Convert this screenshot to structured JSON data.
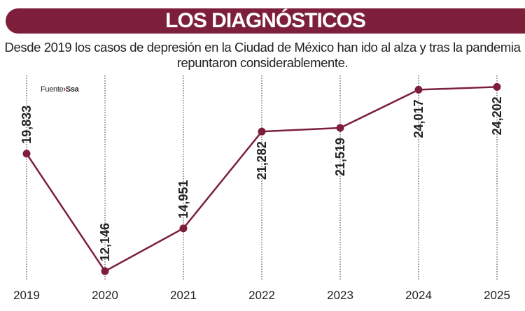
{
  "header": {
    "title": "LOS DIAGNÓSTICOS"
  },
  "subtitle": "Desde 2019 los casos de depresión en la Ciudad de México han ido al alza y tras la pandemia repuntaron considerablemente.",
  "source": {
    "label": "Fuente",
    "arrow": "›",
    "name": "Ssa"
  },
  "colors": {
    "accent": "#7d1f3b",
    "text": "#222222"
  },
  "chart_data": {
    "type": "line",
    "categories": [
      "2019",
      "2020",
      "2021",
      "2022",
      "2023",
      "2024",
      "2025"
    ],
    "values": [
      19833,
      12146,
      14951,
      21282,
      21519,
      24017,
      24202
    ],
    "data_labels": [
      "19,833",
      "12,146",
      "14,951",
      "21,282",
      "21,519",
      "24,017",
      "24,202"
    ],
    "ylim": [
      11600,
      24950
    ],
    "grid": "vertical dotted lines",
    "legend": "none"
  }
}
